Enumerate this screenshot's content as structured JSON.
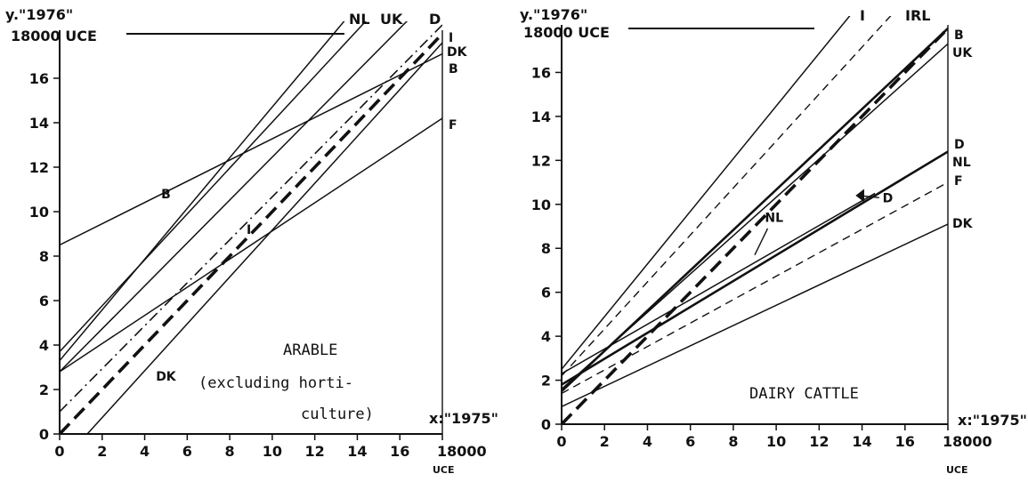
{
  "chart_data": [
    {
      "type": "line",
      "caption": [
        "ARABLE",
        "(excluding horti-",
        "culture)"
      ],
      "y_head": "y.\"1976\"",
      "y_top": "18000 UCE",
      "x_head": "x:\"1975\"",
      "x_unit": "UCE",
      "x_ticks": [
        "0",
        "2",
        "4",
        "6",
        "8",
        "10",
        "12",
        "14",
        "16",
        "18000"
      ],
      "y_ticks": [
        "0",
        "2",
        "4",
        "6",
        "8",
        "10",
        "12",
        "14",
        "16"
      ],
      "xlim": [
        0,
        18
      ],
      "ylim": [
        0,
        18
      ],
      "series": [
        {
          "name": "NL",
          "style": "solid",
          "x": [
            0,
            14.2
          ],
          "y": [
            3.3,
            19.5
          ]
        },
        {
          "name": "UK",
          "style": "solid",
          "x": [
            0,
            15.3
          ],
          "y": [
            3.7,
            19.5
          ]
        },
        {
          "name": "D",
          "style": "solid",
          "x": [
            0,
            17.3
          ],
          "y": [
            2.8,
            19.5
          ]
        },
        {
          "name": "I",
          "style": "dashdot",
          "x": [
            0,
            18
          ],
          "y": [
            1.0,
            18.4
          ]
        },
        {
          "name": "DK",
          "style": "solid",
          "x": [
            1.3,
            18
          ],
          "y": [
            0,
            17.6
          ]
        },
        {
          "name": "B",
          "style": "solid",
          "x": [
            0,
            18
          ],
          "y": [
            8.5,
            17.1
          ]
        },
        {
          "name": "F",
          "style": "solid",
          "x": [
            0,
            18
          ],
          "y": [
            2.8,
            14.2
          ]
        },
        {
          "name": "",
          "style": "dashed-bold",
          "x": [
            0,
            18
          ],
          "y": [
            0,
            18
          ]
        }
      ],
      "inline_labels": [
        {
          "text": "B",
          "x": 5.0,
          "y": 10.6
        },
        {
          "text": "I",
          "x": 8.9,
          "y": 9.0
        },
        {
          "text": "DK",
          "x": 5.0,
          "y": 2.4
        }
      ],
      "right_labels": [
        "I",
        "DK",
        "B",
        "F"
      ],
      "top_labels": [
        "NL",
        "UK",
        "D"
      ]
    },
    {
      "type": "line",
      "caption": [
        "DAIRY CATTLE"
      ],
      "y_head": "y.\"1976\"",
      "y_top": "18000 UCE",
      "x_head": "x:\"1975\"",
      "x_unit": "UCE",
      "x_ticks": [
        "0",
        "2",
        "4",
        "6",
        "8",
        "10",
        "12",
        "14",
        "16",
        "18000"
      ],
      "y_ticks": [
        "0",
        "2",
        "4",
        "6",
        "8",
        "10",
        "12",
        "14",
        "16"
      ],
      "xlim": [
        0,
        18
      ],
      "ylim": [
        0,
        18
      ],
      "series": [
        {
          "name": "I",
          "style": "solid",
          "x": [
            0,
            14.2
          ],
          "y": [
            2.5,
            19.5
          ]
        },
        {
          "name": "IRL",
          "style": "dashed",
          "x": [
            0,
            16.2
          ],
          "y": [
            2.2,
            19.5
          ]
        },
        {
          "name": "B",
          "style": "solid-bold",
          "x": [
            0,
            18
          ],
          "y": [
            1.5,
            18.0
          ]
        },
        {
          "name": "UK",
          "style": "solid",
          "x": [
            0,
            18
          ],
          "y": [
            1.6,
            17.3
          ]
        },
        {
          "name": "D",
          "style": "solid-bold",
          "x": [
            0,
            18
          ],
          "y": [
            1.8,
            12.4
          ]
        },
        {
          "name": "NL",
          "style": "solid",
          "x": [
            0,
            14.6
          ],
          "y": [
            2.3,
            10.5
          ]
        },
        {
          "name": "F",
          "style": "dashed",
          "x": [
            0,
            18
          ],
          "y": [
            1.4,
            11.0
          ]
        },
        {
          "name": "DK",
          "style": "solid",
          "x": [
            0,
            18
          ],
          "y": [
            0.8,
            9.1
          ]
        },
        {
          "name": "",
          "style": "dashed-bold",
          "x": [
            0,
            18
          ],
          "y": [
            0,
            18
          ]
        }
      ],
      "inline_labels": [
        {
          "text": "NL",
          "x": 9.9,
          "y": 9.2
        },
        {
          "text": "D",
          "x": 15.2,
          "y": 10.1
        }
      ],
      "right_labels": [
        "B",
        "UK",
        "D",
        "NL",
        "F",
        "DK"
      ],
      "top_labels": [
        "I",
        "IRL"
      ]
    }
  ]
}
